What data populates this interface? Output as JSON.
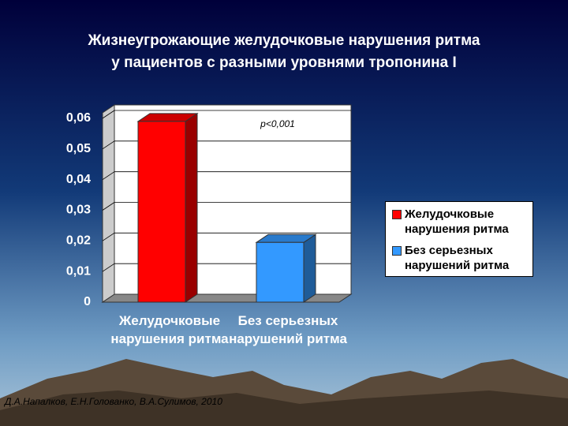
{
  "chart_data": {
    "type": "bar3d",
    "title": [
      "Жизнеугрожающие желудочковые нарушения ритма",
      "у пациентов с разными уровнями тропонина I"
    ],
    "categories": [
      "Желудочковые нарушения ритма",
      "Без серьезных нарушений ритма"
    ],
    "values": [
      0.059,
      0.0195
    ],
    "colors": [
      "#ff0000",
      "#3399ff"
    ],
    "ylim": [
      0,
      0.06
    ],
    "yticks": [
      0,
      {
        "value": 0.01,
        "label": "0,01"
      },
      {
        "value": 0.02,
        "label": "0,02"
      },
      {
        "value": 0.03,
        "label": "0,03"
      },
      {
        "value": 0.04,
        "label": "0,04"
      },
      {
        "value": 0.05,
        "label": "0,05"
      },
      {
        "value": 0.06,
        "label": "0,06"
      }
    ],
    "grid": true,
    "annotation": "p<0,001",
    "legend": "right",
    "source": "Д.А.Напалков, Е.Н.Голованко, В.А.Сулимов, 2010"
  }
}
